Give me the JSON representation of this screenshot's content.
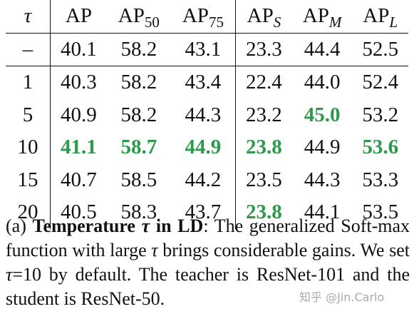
{
  "table": {
    "header": {
      "tau": "τ",
      "ap": "AP",
      "ap50_main": "AP",
      "ap50_sub": "50",
      "ap75_main": "AP",
      "ap75_sub": "75",
      "aps_main": "AP",
      "aps_sub": "S",
      "apm_main": "AP",
      "apm_sub": "M",
      "apl_main": "AP",
      "apl_sub": "L"
    },
    "rows": [
      {
        "tau": "–",
        "ap": "40.1",
        "ap50": "58.2",
        "ap75": "43.1",
        "aps": "23.3",
        "apm": "44.4",
        "apl": "52.5"
      },
      {
        "tau": "1",
        "ap": "40.3",
        "ap50": "58.2",
        "ap75": "43.4",
        "aps": "22.4",
        "apm": "44.0",
        "apl": "52.4"
      },
      {
        "tau": "5",
        "ap": "40.9",
        "ap50": "58.2",
        "ap75": "44.3",
        "aps": "23.2",
        "apm": "45.0",
        "apl": "53.2"
      },
      {
        "tau": "10",
        "ap": "41.1",
        "ap50": "58.7",
        "ap75": "44.9",
        "aps": "23.8",
        "apm": "44.9",
        "apl": "53.6"
      },
      {
        "tau": "15",
        "ap": "40.7",
        "ap50": "58.5",
        "ap75": "44.2",
        "aps": "23.5",
        "apm": "44.3",
        "apl": "53.3"
      },
      {
        "tau": "20",
        "ap": "40.5",
        "ap50": "58.3",
        "ap75": "43.7",
        "aps": "23.8",
        "apm": "44.1",
        "apl": "53.5"
      }
    ],
    "highlight_color": "#2c9a4a"
  },
  "caption": {
    "label": "(a)",
    "bold_title_1": "Temperature",
    "tau_symbol": "τ",
    "bold_title_2": "in LD",
    "text_1": ": The generalized Soft-max function with large",
    "tau_symbol_2": "τ",
    "text_2": "brings considerable gains. We set",
    "tau_symbol_3": "τ",
    "text_3": "=10 by default. The teacher is ResNet-101 and the student is ResNet-50."
  },
  "watermark": {
    "text": "知乎 @Jin.Carlo"
  }
}
